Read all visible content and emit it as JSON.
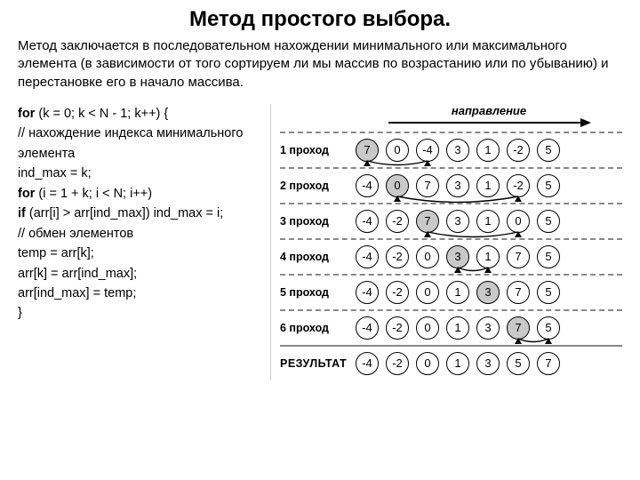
{
  "title": "Метод простого выбора.",
  "description": "Метод заключается в последовательном нахождении минимального или максимального элемента (в зависимости от того сортируем ли мы массив по возрастанию или по убыванию) и перестановке его в начало массива.",
  "code": {
    "l1a": "for",
    "l1b": " (k = 0; k < N - 1; k++) {",
    "l2": "  // нахождение индекса минимального элемента",
    "l3": "  ind_max = k;",
    "l4a": "  for",
    "l4b": " (i = 1 + k; i < N; i++)",
    "l5a": "    if",
    "l5b": " (arr[i] > arr[ind_max]) ind_max = i;",
    "l6": "  // обмен элементов",
    "l7": "  temp = arr[k];",
    "l8": "  arr[k] = arr[ind_max];",
    "l9": "  arr[ind_max] = temp;",
    "l10": "}"
  },
  "direction_label": "направление",
  "passes": [
    {
      "label": "1 проход",
      "cells": [
        7,
        0,
        -4,
        3,
        1,
        -2,
        5
      ],
      "highlight": 0,
      "swap": [
        0,
        2
      ]
    },
    {
      "label": "2 проход",
      "cells": [
        -4,
        0,
        7,
        3,
        1,
        -2,
        5
      ],
      "highlight": 1,
      "swap": [
        1,
        5
      ]
    },
    {
      "label": "3 проход",
      "cells": [
        -4,
        -2,
        7,
        3,
        1,
        0,
        5
      ],
      "highlight": 2,
      "swap": [
        2,
        5
      ]
    },
    {
      "label": "4 проход",
      "cells": [
        -4,
        -2,
        0,
        3,
        1,
        7,
        5
      ],
      "highlight": 3,
      "swap": [
        3,
        4
      ]
    },
    {
      "label": "5 проход",
      "cells": [
        -4,
        -2,
        0,
        1,
        3,
        7,
        5
      ],
      "highlight": 4,
      "swap": null
    },
    {
      "label": "6 проход",
      "cells": [
        -4,
        -2,
        0,
        1,
        3,
        7,
        5
      ],
      "highlight": 5,
      "swap": [
        5,
        6
      ]
    }
  ],
  "result": {
    "label": "РЕЗУЛЬТАТ",
    "cells": [
      -4,
      -2,
      0,
      1,
      3,
      5,
      7
    ]
  },
  "colors": {
    "cell_border": "#000000",
    "cell_highlight": "#c9c9c9",
    "dash": "#888888"
  },
  "layout": {
    "cell_size": 26,
    "cell_gap": 8
  }
}
